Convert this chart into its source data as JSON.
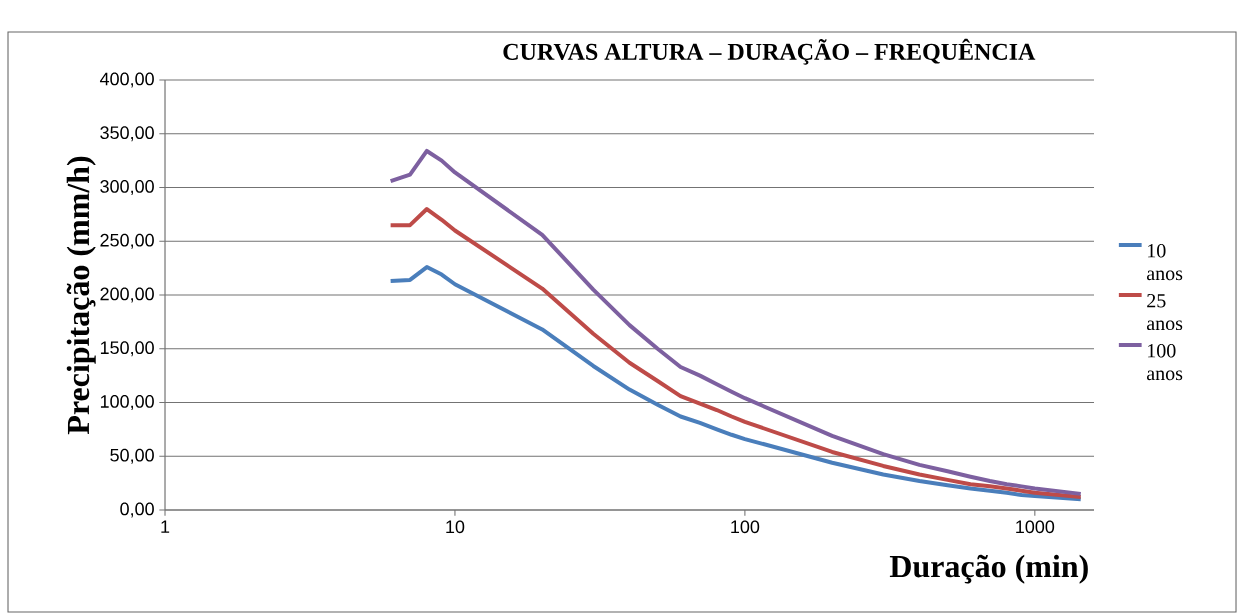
{
  "chart_data": {
    "type": "line",
    "title": "CURVAS ALTURA – DURAÇÃO – FREQUÊNCIA",
    "xlabel": "Duração (min)",
    "ylabel": "Precipitação (mm/h)",
    "x": [
      6,
      7,
      8,
      9,
      10,
      20,
      30,
      40,
      50,
      60,
      70,
      80,
      90,
      100,
      200,
      300,
      400,
      500,
      600,
      700,
      800,
      900,
      1000,
      1440
    ],
    "series": [
      {
        "name": "10 anos",
        "color": "#4a7ebb",
        "values": [
          213,
          214,
          226,
          219,
          210,
          168,
          134,
          112,
          98,
          87,
          81,
          75,
          70,
          66,
          44,
          33,
          27,
          23,
          20,
          18,
          16,
          14,
          13,
          10
        ]
      },
      {
        "name": "25 anos",
        "color": "#be4b48",
        "values": [
          265,
          265,
          280,
          270,
          260,
          206,
          164,
          137,
          120,
          106,
          99,
          93,
          87,
          82,
          54,
          41,
          33,
          28,
          24,
          22,
          20,
          18,
          16,
          12
        ]
      },
      {
        "name": "100 anos",
        "color": "#7d60a0",
        "values": [
          306,
          312,
          334,
          325,
          314,
          256,
          205,
          172,
          150,
          133,
          125,
          117,
          110,
          104,
          69,
          52,
          42,
          36,
          31,
          27,
          24,
          22,
          20,
          15
        ]
      }
    ],
    "log": "x",
    "xlim": [
      1,
      1600
    ],
    "xticks": [
      1,
      10,
      100,
      1000
    ],
    "ylim": [
      0,
      400
    ],
    "yticks": [
      {
        "value": 0,
        "label": "0,00"
      },
      {
        "value": 50,
        "label": "50,00"
      },
      {
        "value": 100,
        "label": "100,00"
      },
      {
        "value": 150,
        "label": "150,00"
      },
      {
        "value": 200,
        "label": "200,00"
      },
      {
        "value": 250,
        "label": "250,00"
      },
      {
        "value": 300,
        "label": "300,00"
      },
      {
        "value": 350,
        "label": "350,00"
      },
      {
        "value": 400,
        "label": "400,00"
      }
    ],
    "grid": "y",
    "legend": "right"
  }
}
